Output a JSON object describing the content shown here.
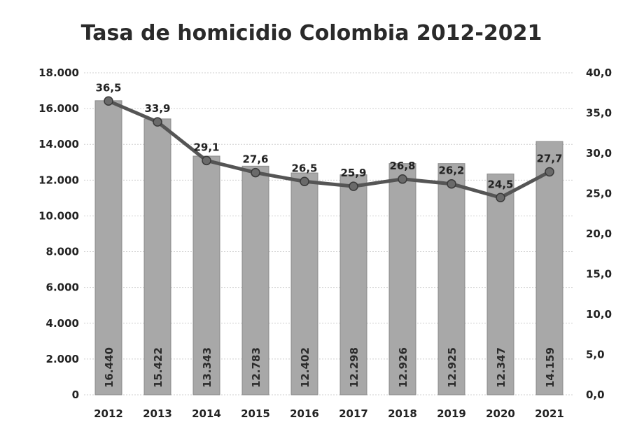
{
  "chart_data": {
    "type": "bar",
    "title": "Tasa de homicidio Colombia 2012-2021",
    "categories": [
      "2012",
      "2013",
      "2014",
      "2015",
      "2016",
      "2017",
      "2018",
      "2019",
      "2020",
      "2021"
    ],
    "series": [
      {
        "type": "bar",
        "axis": "left",
        "values": [
          16440,
          15422,
          13343,
          12783,
          12402,
          12298,
          12926,
          12925,
          12347,
          14159
        ],
        "value_labels": [
          "16.440",
          "15.422",
          "13.343",
          "12.783",
          "12.402",
          "12.298",
          "12.926",
          "12.925",
          "12.347",
          "14.159"
        ],
        "color": "#a8a8a8"
      },
      {
        "type": "line",
        "axis": "right",
        "values": [
          36.5,
          33.9,
          29.1,
          27.6,
          26.5,
          25.9,
          26.8,
          26.2,
          24.5,
          27.7
        ],
        "value_labels": [
          "36,5",
          "33,9",
          "29,1",
          "27,6",
          "26,5",
          "25,9",
          "26,8",
          "26,2",
          "24,5",
          "27,7"
        ],
        "color": "#555555"
      }
    ],
    "y_left": {
      "range": [
        0,
        18000
      ],
      "ticks": [
        "0",
        "2.000",
        "4.000",
        "6.000",
        "8.000",
        "10.000",
        "12.000",
        "14.000",
        "16.000",
        "18.000"
      ]
    },
    "y_right": {
      "range": [
        0,
        40
      ],
      "ticks": [
        "0,0",
        "5,0",
        "10,0",
        "15,0",
        "20,0",
        "25,0",
        "30,0",
        "35,0",
        "40,0"
      ]
    },
    "grid": true,
    "legend": "none"
  }
}
